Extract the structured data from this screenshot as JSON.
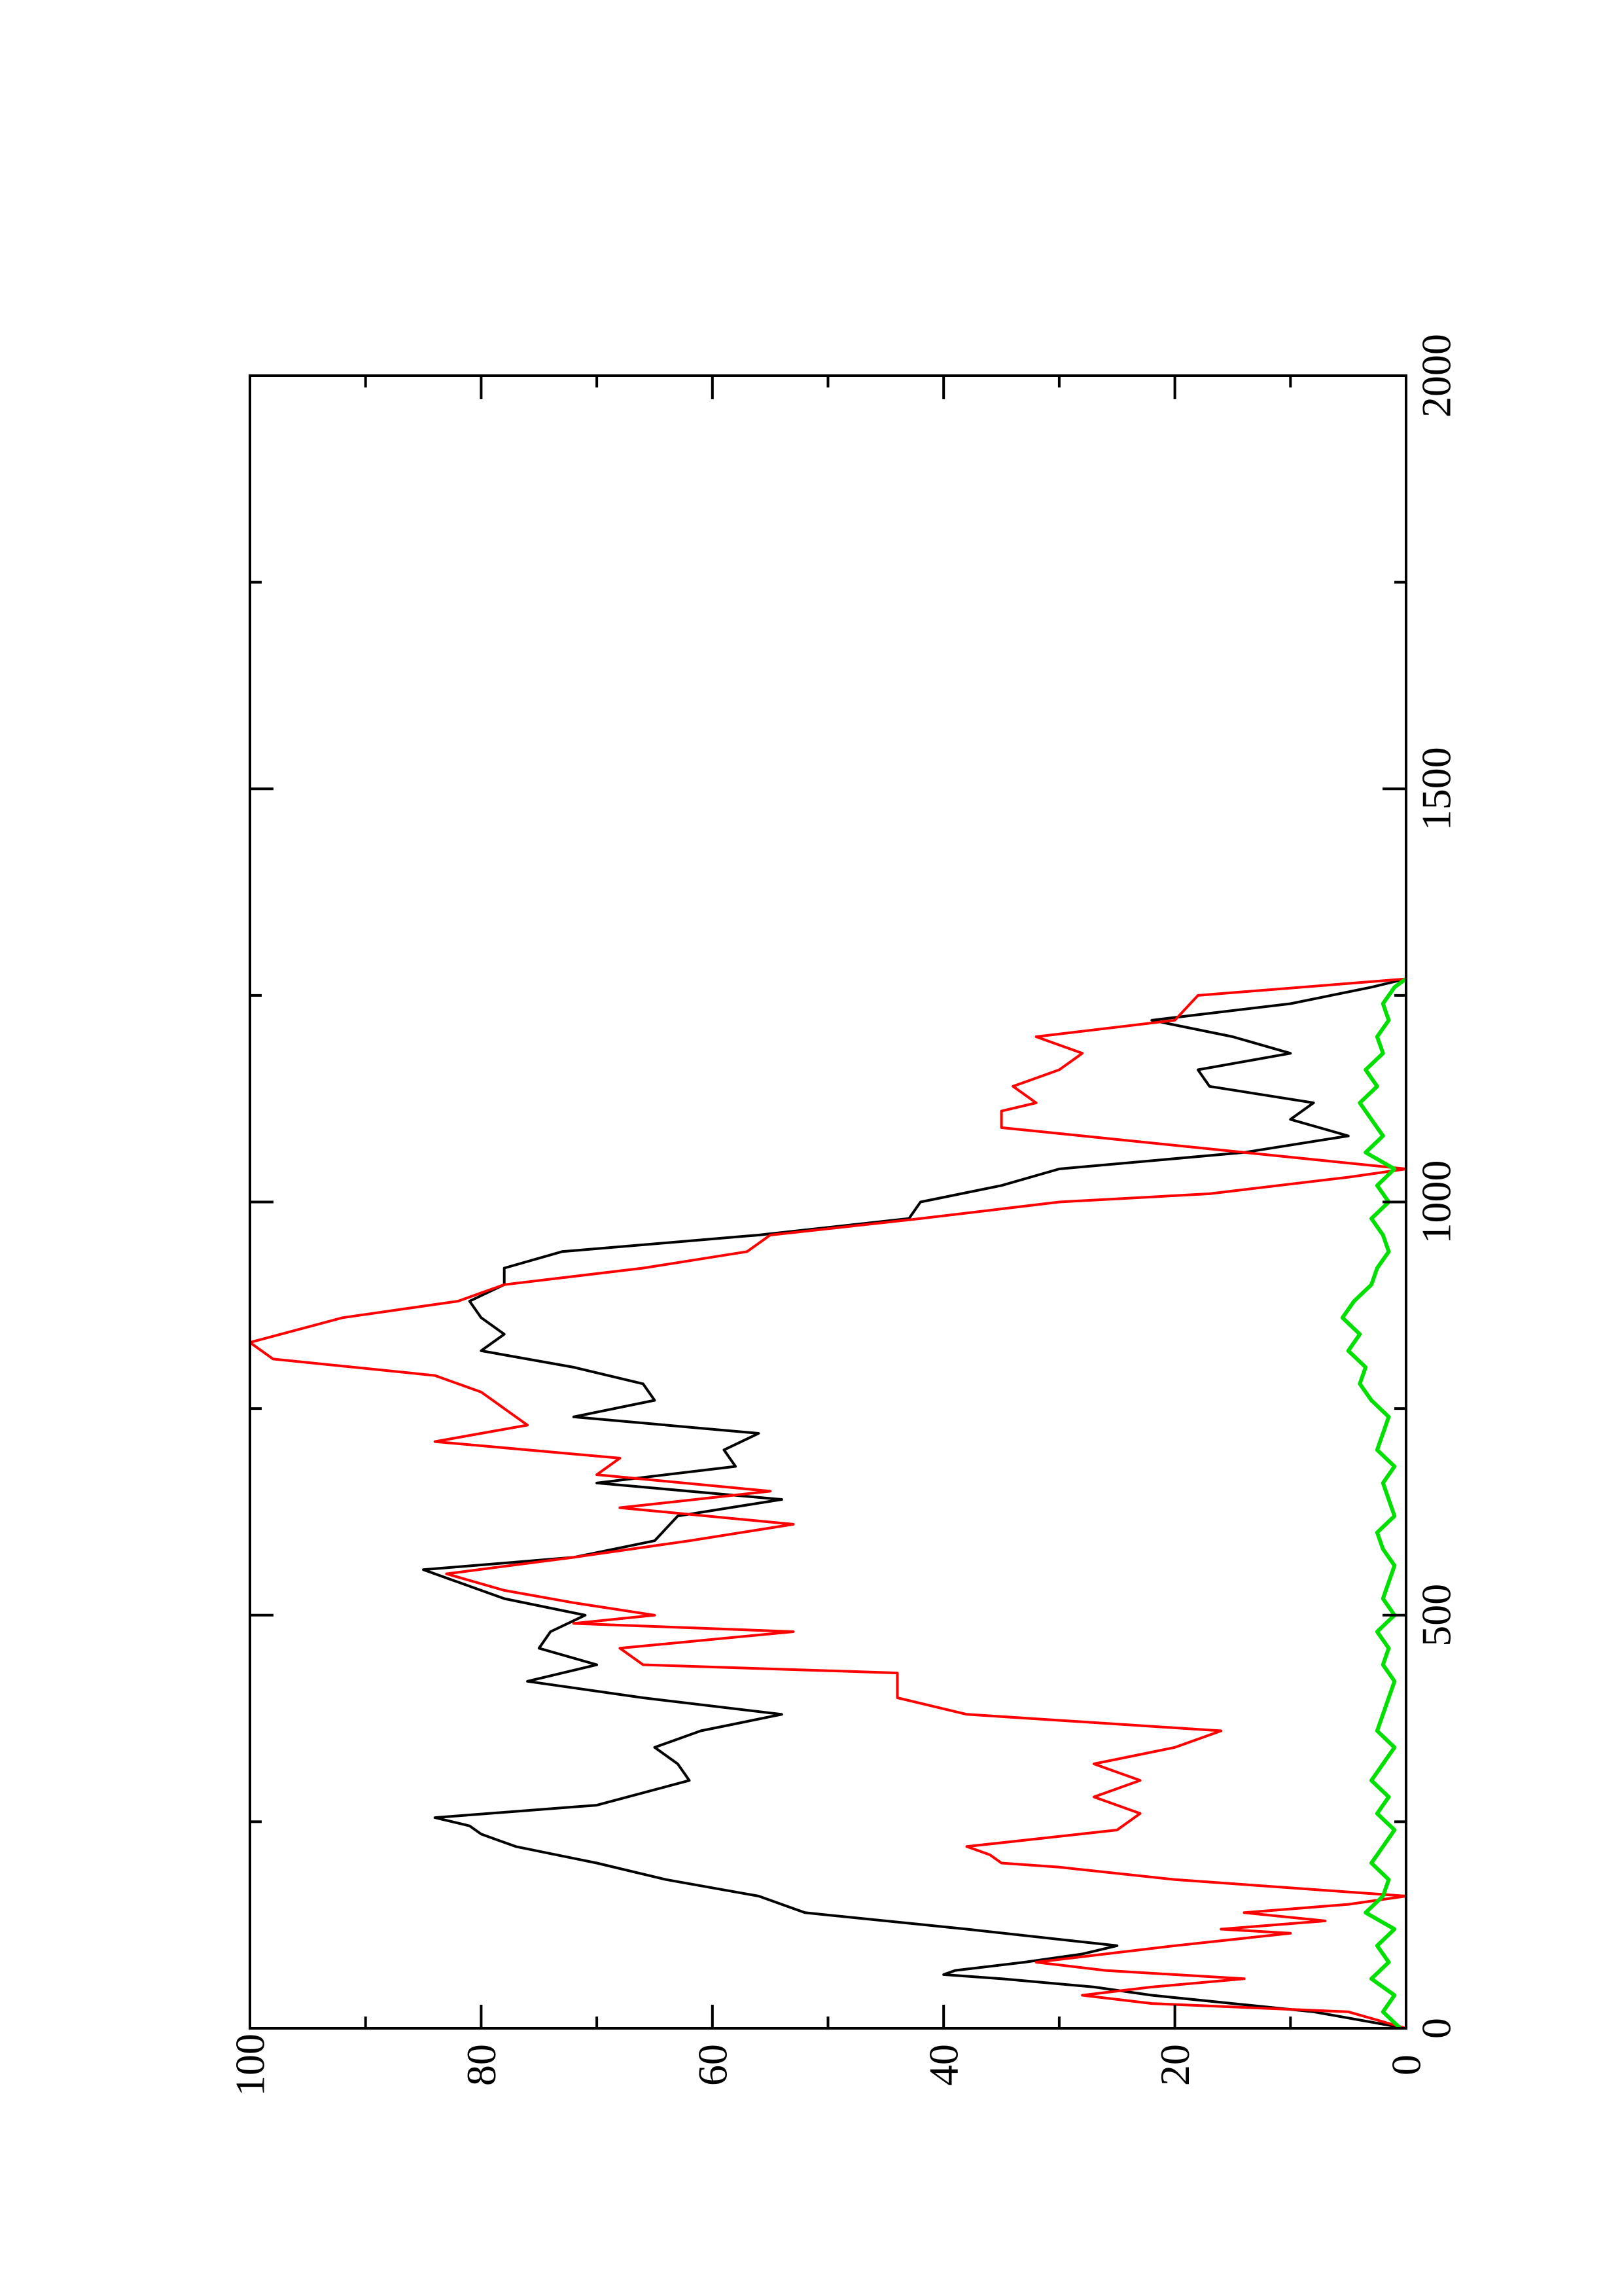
{
  "chart_data": {
    "type": "line",
    "title": "",
    "xlabel": "",
    "ylabel": "",
    "rotation_deg": -90,
    "xlim": [
      0,
      2000
    ],
    "ylim": [
      0,
      100
    ],
    "grid": false,
    "legend": "none",
    "x_ticks": [
      "0",
      "500",
      "1000",
      "1500",
      "2000"
    ],
    "y_ticks": [
      "0",
      "20",
      "40",
      "60",
      "80",
      "100"
    ],
    "series": [
      {
        "color": "#000000",
        "x": [
          0,
          20,
          40,
          50,
          60,
          65,
          70,
          80,
          90,
          100,
          120,
          140,
          160,
          180,
          200,
          220,
          235,
          245,
          255,
          270,
          300,
          320,
          340,
          360,
          380,
          400,
          420,
          440,
          460,
          480,
          500,
          520,
          540,
          555,
          570,
          590,
          620,
          640,
          660,
          680,
          700,
          720,
          740,
          760,
          780,
          800,
          820,
          840,
          860,
          880,
          900,
          920,
          940,
          960,
          980,
          1000,
          1020,
          1040,
          1060,
          1080,
          1100,
          1120,
          1140,
          1160,
          1180,
          1200,
          1220,
          1240,
          1260,
          1270
        ],
        "y": [
          0,
          8,
          22,
          27,
          35,
          40,
          39,
          33,
          28,
          25,
          38,
          52,
          56,
          64,
          70,
          77,
          80,
          81,
          84,
          70,
          62,
          63,
          65,
          61,
          54,
          66,
          76,
          70,
          75,
          74,
          71,
          78,
          82,
          85,
          72,
          65,
          63,
          54,
          70,
          58,
          59,
          56,
          72,
          65,
          66,
          72,
          80,
          78,
          80,
          81,
          78,
          78,
          73,
          56,
          43,
          42,
          35,
          30,
          14,
          5,
          10,
          8,
          17,
          18,
          10,
          15,
          22,
          10,
          3,
          0
        ]
      },
      {
        "color": "#ff0000",
        "x": [
          0,
          20,
          30,
          40,
          50,
          60,
          70,
          80,
          90,
          100,
          115,
          120,
          130,
          140,
          150,
          160,
          170,
          180,
          195,
          200,
          210,
          220,
          240,
          260,
          280,
          300,
          320,
          340,
          360,
          380,
          400,
          430,
          440,
          460,
          480,
          490,
          500,
          515,
          530,
          550,
          570,
          590,
          610,
          630,
          650,
          670,
          690,
          710,
          730,
          750,
          770,
          790,
          810,
          830,
          860,
          880,
          900,
          920,
          940,
          960,
          980,
          1000,
          1010,
          1030,
          1040,
          1060,
          1080,
          1090,
          1110,
          1120,
          1140,
          1160,
          1180,
          1200,
          1220,
          1250,
          1270
        ],
        "y": [
          0,
          5,
          22,
          28,
          22,
          14,
          26,
          32,
          26,
          20,
          10,
          16,
          7,
          14,
          5,
          0,
          10,
          20,
          30,
          35,
          36,
          38,
          25,
          23,
          27,
          23,
          27,
          20,
          16,
          38,
          44,
          44,
          66,
          68,
          53,
          72,
          65,
          72,
          78,
          83,
          72,
          62,
          53,
          68,
          55,
          70,
          68,
          84,
          76,
          78,
          80,
          84,
          98,
          100,
          92,
          82,
          78,
          66,
          57,
          55,
          42,
          30,
          17,
          5,
          0,
          14,
          28,
          35,
          35,
          32,
          34,
          30,
          28,
          32,
          20,
          18,
          0
        ]
      },
      {
        "color": "#00e000",
        "x": [
          0,
          20,
          40,
          60,
          80,
          100,
          120,
          140,
          160,
          180,
          200,
          220,
          240,
          260,
          280,
          300,
          320,
          340,
          360,
          380,
          400,
          420,
          440,
          460,
          480,
          500,
          520,
          540,
          560,
          580,
          600,
          620,
          640,
          660,
          680,
          700,
          720,
          740,
          760,
          780,
          800,
          820,
          840,
          860,
          880,
          900,
          920,
          940,
          960,
          980,
          1000,
          1020,
          1040,
          1060,
          1080,
          1100,
          1120,
          1140,
          1160,
          1180,
          1200,
          1220,
          1240,
          1260,
          1270
        ],
        "y": [
          0.5,
          2,
          1,
          3,
          1.5,
          2.5,
          1,
          3.5,
          2,
          1.5,
          3,
          2,
          1,
          2.5,
          1.5,
          3,
          2,
          1,
          2.5,
          2,
          1.5,
          1,
          2,
          1.5,
          2.5,
          1,
          2,
          1.5,
          1,
          2,
          2.5,
          1,
          1.5,
          2,
          1,
          2.5,
          2,
          1.5,
          3,
          4,
          3.5,
          5,
          4,
          5.5,
          4.5,
          3,
          2.5,
          1.5,
          2,
          3,
          1.5,
          2.5,
          1,
          3.5,
          2,
          3,
          4,
          2.5,
          3.5,
          2,
          2.5,
          1.5,
          2,
          1,
          0
        ]
      }
    ]
  }
}
